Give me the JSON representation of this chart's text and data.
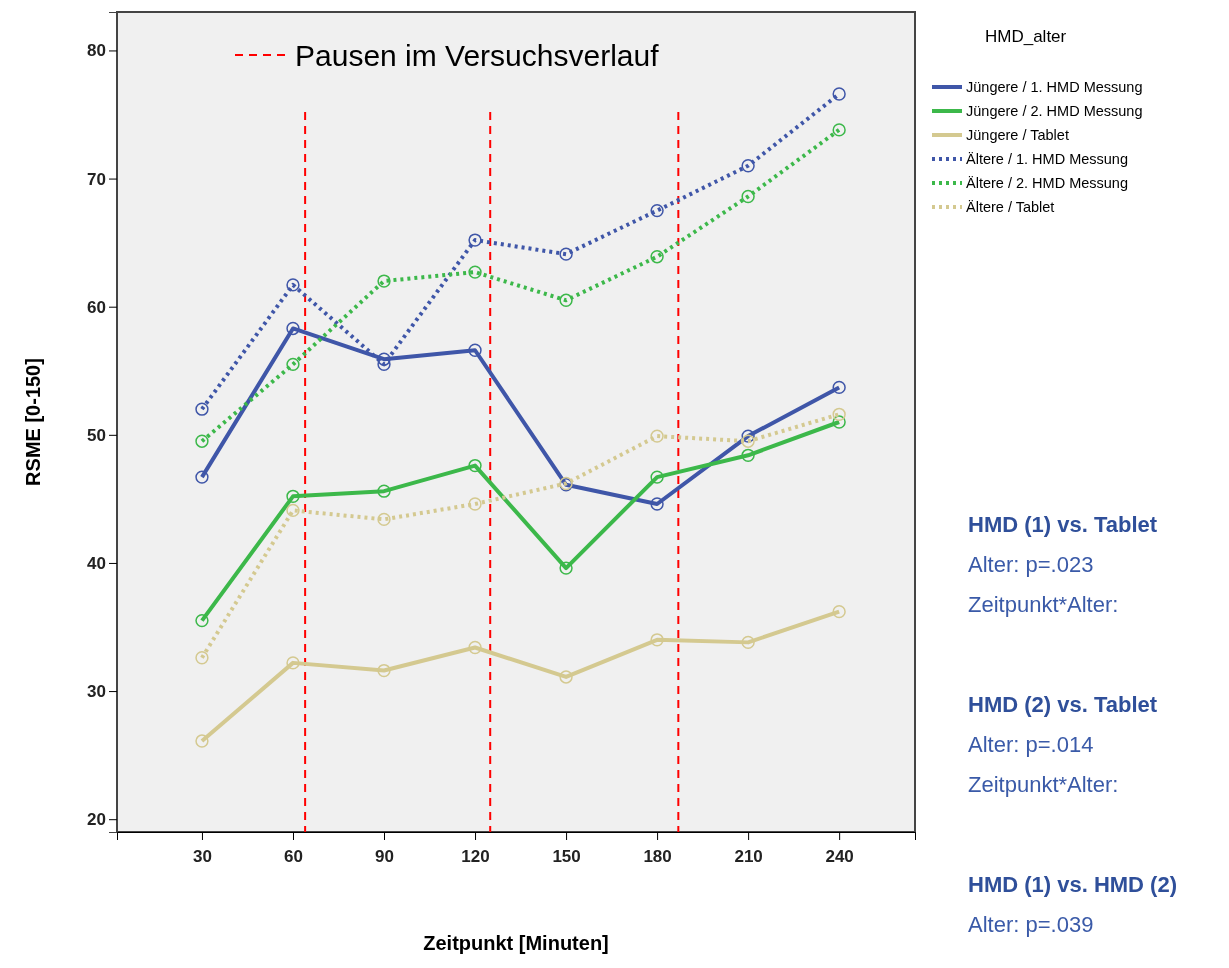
{
  "chart_data": {
    "type": "line",
    "xlabel": "Zeitpunkt [Minuten]",
    "ylabel": "RSME [0-150]",
    "legend_title": "HMD_alter",
    "legend": "right",
    "marker": "circle",
    "grid": false,
    "x": [
      30,
      60,
      90,
      120,
      150,
      180,
      210,
      240
    ],
    "xlim": [
      2,
      265
    ],
    "xticks": [
      30,
      60,
      90,
      120,
      150,
      180,
      210,
      240
    ],
    "ylim": [
      19,
      83
    ],
    "yticks": [
      20,
      30,
      40,
      50,
      60,
      70,
      80
    ],
    "series": [
      {
        "name": "Jüngere / 1. HMD Messung",
        "color": "#3f56a8",
        "line_style": "solid",
        "values": [
          46.7,
          58.3,
          55.9,
          56.6,
          46.1,
          44.6,
          49.9,
          53.7
        ]
      },
      {
        "name": "Jüngere / 2. HMD Messung",
        "color": "#3cb84a",
        "line_style": "solid",
        "values": [
          35.5,
          45.2,
          45.6,
          47.6,
          39.6,
          46.7,
          48.4,
          51.0
        ]
      },
      {
        "name": "Jüngere / Tablet",
        "color": "#d4c990",
        "line_style": "solid",
        "values": [
          26.1,
          32.2,
          31.6,
          33.4,
          31.1,
          34.0,
          33.8,
          36.2
        ]
      },
      {
        "name": "Ältere / 1. HMD Messung",
        "color": "#3f56a8",
        "line_style": "dotted",
        "values": [
          52.0,
          61.7,
          55.5,
          65.2,
          64.1,
          67.5,
          71.0,
          76.6
        ]
      },
      {
        "name": "Ältere / 2. HMD Messung",
        "color": "#3cb84a",
        "line_style": "dotted",
        "values": [
          49.5,
          55.5,
          62.0,
          62.7,
          60.5,
          63.9,
          68.6,
          73.8
        ]
      },
      {
        "name": "Ältere / Tablet",
        "color": "#d4c990",
        "line_style": "dotted",
        "values": [
          32.6,
          44.1,
          43.4,
          44.6,
          46.2,
          49.9,
          49.5,
          51.6
        ]
      }
    ],
    "ref_lines": [
      {
        "axis": "x",
        "value": 64,
        "label": "Pausen im Versuchsverlauf",
        "color": "#ff0000",
        "line_style": "dashed"
      },
      {
        "axis": "x",
        "value": 125,
        "color": "#ff0000",
        "line_style": "dashed"
      },
      {
        "axis": "x",
        "value": 187,
        "color": "#ff0000",
        "line_style": "dashed"
      }
    ],
    "annotations": [
      "HMD (1) vs. Tablet",
      "Alter: p=.023",
      "Zeitpunkt*Alter:",
      "HMD (2) vs. Tablet",
      "Alter: p=.014",
      "Zeitpunkt*Alter:",
      "HMD (1) vs. HMD (2)",
      "Alter: p=.039"
    ]
  }
}
